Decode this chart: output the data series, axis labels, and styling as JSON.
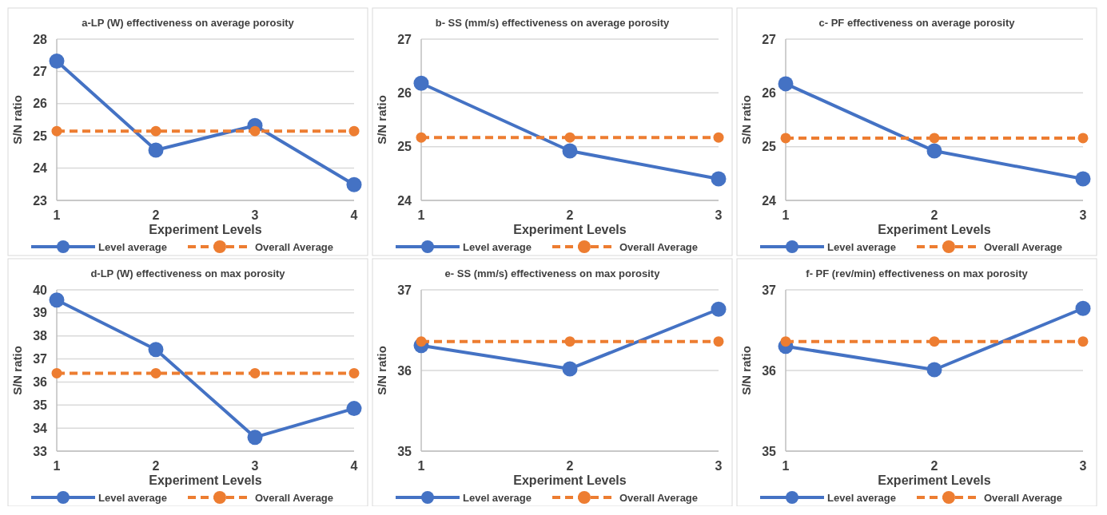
{
  "chart_data": [
    {
      "type": "line",
      "title": "a-LP (W) effectiveness on average porosity",
      "xlabel": "Experiment Levels",
      "ylabel": "S/N ratio",
      "categories": [
        "1",
        "2",
        "3",
        "4"
      ],
      "ylim": [
        23,
        28
      ],
      "yticks": [
        23,
        24,
        25,
        26,
        27,
        28
      ],
      "grid": "y",
      "legend": "bottom",
      "marker": "circle",
      "series": [
        {
          "name": "Level average",
          "color": "#4472c4",
          "line_style": "solid",
          "values": [
            27.32,
            24.56,
            25.32,
            23.49
          ]
        },
        {
          "name": "Overall Average",
          "color": "#ed7d31",
          "line_style": "dashed",
          "values": [
            25.15,
            25.15,
            25.15,
            25.15
          ]
        }
      ]
    },
    {
      "type": "line",
      "title": "b- SS (mm/s) effectiveness on average porosity",
      "xlabel": "Experiment Levels",
      "ylabel": "S/N ratio",
      "categories": [
        "1",
        "2",
        "3"
      ],
      "ylim": [
        24,
        27
      ],
      "yticks": [
        24,
        25,
        26,
        27
      ],
      "grid": "y",
      "legend": "bottom",
      "marker": "circle",
      "series": [
        {
          "name": "Level average",
          "color": "#4472c4",
          "line_style": "solid",
          "values": [
            26.18,
            24.92,
            24.4
          ]
        },
        {
          "name": "Overall Average",
          "color": "#ed7d31",
          "line_style": "dashed",
          "values": [
            25.17,
            25.17,
            25.17
          ]
        }
      ]
    },
    {
      "type": "line",
      "title": "c- PF effectiveness on average porosity",
      "xlabel": "Experiment Levels",
      "ylabel": "S/N ratio",
      "categories": [
        "1",
        "2",
        "3"
      ],
      "ylim": [
        24,
        27
      ],
      "yticks": [
        24,
        25,
        26,
        27
      ],
      "grid": "y",
      "legend": "bottom",
      "marker": "circle",
      "series": [
        {
          "name": "Level average",
          "color": "#4472c4",
          "line_style": "solid",
          "values": [
            26.17,
            24.92,
            24.4
          ]
        },
        {
          "name": "Overall Average",
          "color": "#ed7d31",
          "line_style": "dashed",
          "values": [
            25.16,
            25.16,
            25.16
          ]
        }
      ]
    },
    {
      "type": "line",
      "title": "d-LP (W) effectiveness on max porosity",
      "xlabel": "Experiment Levels",
      "ylabel": "S/N ratio",
      "categories": [
        "1",
        "2",
        "3",
        "4"
      ],
      "ylim": [
        33,
        40
      ],
      "yticks": [
        33,
        34,
        35,
        36,
        37,
        38,
        39,
        40
      ],
      "grid": "y",
      "legend": "bottom",
      "marker": "circle",
      "series": [
        {
          "name": "Level average",
          "color": "#4472c4",
          "line_style": "solid",
          "values": [
            39.56,
            37.41,
            33.6,
            34.85
          ]
        },
        {
          "name": "Overall Average",
          "color": "#ed7d31",
          "line_style": "dashed",
          "values": [
            36.38,
            36.38,
            36.38,
            36.38
          ]
        }
      ]
    },
    {
      "type": "line",
      "title": "e- SS (mm/s) effectiveness on max porosity",
      "xlabel": "Experiment Levels",
      "ylabel": "S/N ratio",
      "categories": [
        "1",
        "2",
        "3"
      ],
      "ylim": [
        35,
        37
      ],
      "yticks": [
        35,
        36,
        37
      ],
      "grid": "y",
      "legend": "bottom",
      "marker": "circle",
      "series": [
        {
          "name": "Level average",
          "color": "#4472c4",
          "line_style": "solid",
          "values": [
            36.31,
            36.02,
            36.76
          ]
        },
        {
          "name": "Overall Average",
          "color": "#ed7d31",
          "line_style": "dashed",
          "values": [
            36.36,
            36.36,
            36.36
          ]
        }
      ]
    },
    {
      "type": "line",
      "title": "f- PF (rev/min) effectiveness on max porosity",
      "xlabel": "Experiment Levels",
      "ylabel": "S/N ratio",
      "categories": [
        "1",
        "2",
        "3"
      ],
      "ylim": [
        35,
        37
      ],
      "yticks": [
        35,
        36,
        37
      ],
      "grid": "y",
      "legend": "bottom",
      "marker": "circle",
      "series": [
        {
          "name": "Level average",
          "color": "#4472c4",
          "line_style": "solid",
          "values": [
            36.3,
            36.01,
            36.77
          ]
        },
        {
          "name": "Overall Average",
          "color": "#ed7d31",
          "line_style": "dashed",
          "values": [
            36.36,
            36.36,
            36.36
          ]
        }
      ]
    }
  ]
}
